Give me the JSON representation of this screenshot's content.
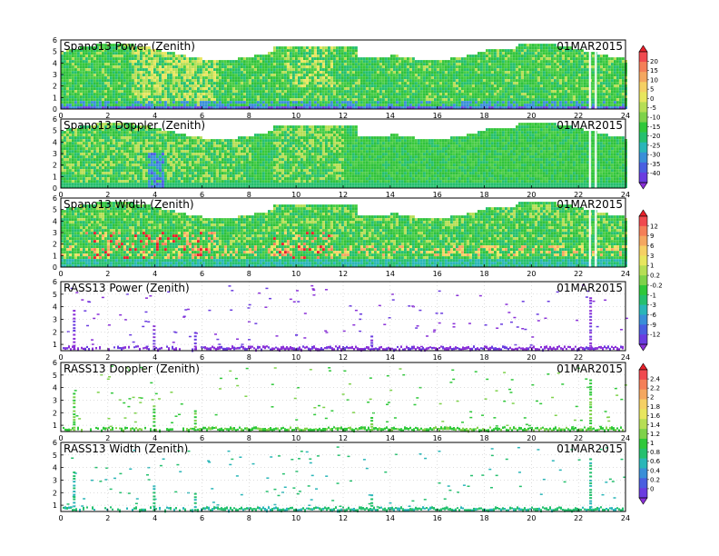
{
  "chart_data": [
    {
      "type": "heatmap",
      "title": "Spano13 Power (Zenith)",
      "date": "01MAR2015",
      "x_ticks": [
        "0",
        "2",
        "4",
        "6",
        "8",
        "10",
        "12",
        "14",
        "16",
        "18",
        "20",
        "22",
        "24"
      ],
      "y_ticks": [
        "0",
        "1",
        "2",
        "3",
        "4",
        "5",
        "6"
      ],
      "xlim": [
        0,
        24
      ],
      "ylim": [
        0,
        6
      ],
      "colorbar": "cb1"
    },
    {
      "type": "heatmap",
      "title": "Spano13 Doppler (Zenith)",
      "date": "01MAR2015",
      "x_ticks": [
        "0",
        "2",
        "4",
        "6",
        "8",
        "10",
        "12",
        "14",
        "16",
        "18",
        "20",
        "22",
        "24"
      ],
      "y_ticks": [
        "0",
        "1",
        "2",
        "3",
        "4",
        "5",
        "6"
      ],
      "xlim": [
        0,
        24
      ],
      "ylim": [
        0,
        6
      ],
      "colorbar": "cb1"
    },
    {
      "type": "heatmap",
      "title": "Spano13 Width (Zenith)",
      "date": "01MAR2015",
      "x_ticks": [
        "0",
        "2",
        "4",
        "6",
        "8",
        "10",
        "12",
        "14",
        "16",
        "18",
        "20",
        "22",
        "24"
      ],
      "y_ticks": [
        "0",
        "1",
        "2",
        "3",
        "4",
        "5",
        "6"
      ],
      "xlim": [
        0,
        24
      ],
      "ylim": [
        0,
        6
      ],
      "colorbar": "cb2"
    },
    {
      "type": "heatmap",
      "title": "RASS13 Power (Zenith)",
      "date": "01MAR2015",
      "x_ticks": [
        "0",
        "2",
        "4",
        "6",
        "8",
        "10",
        "12",
        "14",
        "16",
        "18",
        "20",
        "22",
        "24"
      ],
      "y_ticks": [
        "1",
        "2",
        "3",
        "4",
        "5",
        "6"
      ],
      "xlim": [
        0,
        24
      ],
      "ylim": [
        0.5,
        6
      ],
      "colorbar": "cb2"
    },
    {
      "type": "heatmap",
      "title": "RASS13 Doppler (Zenith)",
      "date": "01MAR2015",
      "x_ticks": [
        "0",
        "2",
        "4",
        "6",
        "8",
        "10",
        "12",
        "14",
        "16",
        "18",
        "20",
        "22",
        "24"
      ],
      "y_ticks": [
        "1",
        "2",
        "3",
        "4",
        "5",
        "6"
      ],
      "xlim": [
        0,
        24
      ],
      "ylim": [
        0.5,
        6
      ],
      "colorbar": "cb3"
    },
    {
      "type": "heatmap",
      "title": "RASS13 Width (Zenith)",
      "date": "01MAR2015",
      "x_ticks": [
        "0",
        "2",
        "4",
        "6",
        "8",
        "10",
        "12",
        "14",
        "16",
        "18",
        "20",
        "22",
        "24"
      ],
      "y_ticks": [
        "1",
        "2",
        "3",
        "4",
        "5",
        "6"
      ],
      "xlim": [
        0,
        24
      ],
      "ylim": [
        0.5,
        6
      ],
      "colorbar": "cb3"
    }
  ],
  "colorbars": {
    "cb1": {
      "labels": [
        "20",
        "15",
        "10",
        "5",
        "0",
        "-5",
        "-10",
        "-15",
        "-20",
        "-25",
        "-30",
        "-35",
        "-40"
      ],
      "colors": [
        "#e8202a",
        "#f04a4f",
        "#f47f58",
        "#f4a760",
        "#f5d064",
        "#e7e65e",
        "#b6de55",
        "#7ed24a",
        "#2fc83a",
        "#25c06e",
        "#2ab6b8",
        "#3a8fd8",
        "#4a5fe0",
        "#6a3ce0",
        "#8a30d8"
      ]
    },
    "cb2": {
      "labels": [
        "12",
        "9",
        "6",
        "3",
        "1",
        "0.2",
        "-0.2",
        "-1",
        "-3",
        "-6",
        "-9",
        "-12"
      ],
      "colors": [
        "#e8202a",
        "#f04a4f",
        "#f47f58",
        "#f4a760",
        "#f5d064",
        "#e7e65e",
        "#b6de55",
        "#7ed24a",
        "#2fc83a",
        "#25c06e",
        "#2ab6b8",
        "#3a8fd8",
        "#4a5fe0",
        "#6a3ce0",
        "#8a30d8"
      ]
    },
    "cb3": {
      "labels": [
        "2.4",
        "2.2",
        "2",
        "1.8",
        "1.6",
        "1.4",
        "1.2",
        "1",
        "0.8",
        "0.6",
        "0.4",
        "0.2",
        "0"
      ],
      "colors": [
        "#e8202a",
        "#f04a4f",
        "#f47f58",
        "#f4a760",
        "#f5d064",
        "#e7e65e",
        "#b6de55",
        "#7ed24a",
        "#2fc83a",
        "#25c06e",
        "#2ab6b8",
        "#3a8fd8",
        "#4a5fe0",
        "#6a3ce0",
        "#8a30d8"
      ]
    }
  }
}
